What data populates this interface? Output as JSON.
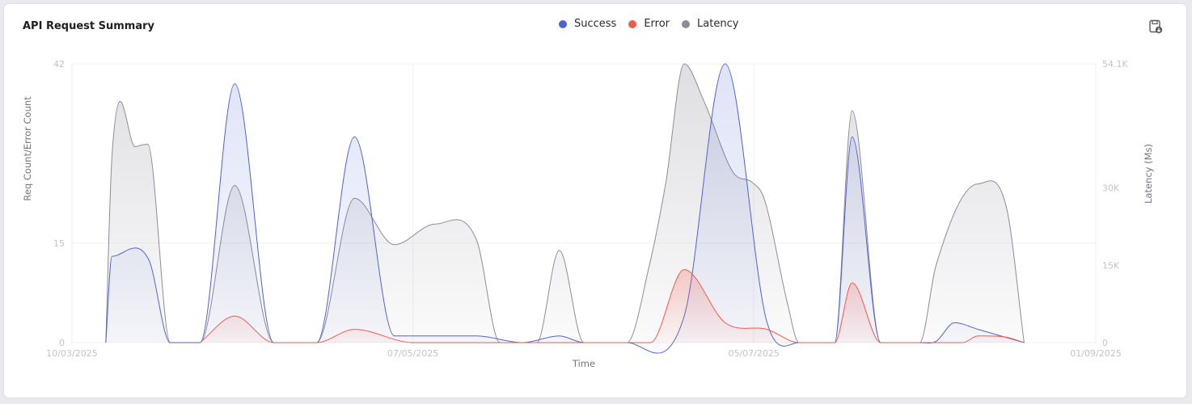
{
  "card": {
    "title": "API Request Summary",
    "export_icon": "save-download-icon"
  },
  "legend": [
    {
      "name": "Success",
      "color": "#4f63d2"
    },
    {
      "name": "Error",
      "color": "#f05a4c"
    },
    {
      "name": "Latency",
      "color": "#8c8c99"
    }
  ],
  "chart_data": {
    "type": "area",
    "title": "API Request Summary",
    "xlabel": "Time",
    "ylabel": "Req Count/Error Count",
    "y2label": "Latency (Ms)",
    "x_tick_labels": [
      "10/03/2025",
      "07/05/2025",
      "05/07/2025",
      "01/09/2025"
    ],
    "y_ticks": [
      0,
      15,
      42
    ],
    "y2_ticks": [
      "0",
      "15K",
      "30K",
      "54.1K"
    ],
    "ylim": [
      0,
      42
    ],
    "y2lim": [
      0,
      54100
    ],
    "x_range": [
      0,
      100
    ],
    "x_ticks_pos": [
      0,
      33.3,
      66.6,
      100
    ],
    "series": [
      {
        "name": "Latency",
        "axis": "right",
        "color": "#8c8c99",
        "points": [
          [
            3.3,
            0
          ],
          [
            3.9,
            36000
          ],
          [
            6.2,
            38000
          ],
          [
            7.4,
            38500
          ],
          [
            9.6,
            0
          ],
          [
            12.5,
            0
          ],
          [
            15.9,
            30500
          ],
          [
            19.7,
            0
          ],
          [
            23.9,
            0
          ],
          [
            27.6,
            28000
          ],
          [
            31.5,
            19000
          ],
          [
            35.5,
            23000
          ],
          [
            39.5,
            20000
          ],
          [
            41.8,
            0
          ],
          [
            45.4,
            0
          ],
          [
            47.6,
            17900
          ],
          [
            50,
            0
          ],
          [
            54.2,
            0
          ],
          [
            56.4,
            15000
          ],
          [
            58,
            31000
          ],
          [
            59.8,
            54100
          ],
          [
            61.7,
            47000
          ],
          [
            64.6,
            33000
          ],
          [
            66.5,
            31000
          ],
          [
            67.6,
            28000
          ],
          [
            69.9,
            7500
          ],
          [
            71,
            0
          ],
          [
            74.5,
            0
          ],
          [
            76.2,
            45000
          ],
          [
            79,
            0
          ],
          [
            82.8,
            0
          ],
          [
            84.4,
            15000
          ],
          [
            88.5,
            30800
          ],
          [
            91.3,
            26000
          ],
          [
            93,
            0
          ]
        ]
      },
      {
        "name": "Success",
        "axis": "left",
        "color": "#4f63d2",
        "points": [
          [
            3.3,
            0
          ],
          [
            3.9,
            13
          ],
          [
            7.5,
            12.5
          ],
          [
            9.6,
            0
          ],
          [
            12.5,
            0
          ],
          [
            15.9,
            39
          ],
          [
            19.7,
            0
          ],
          [
            23.9,
            0
          ],
          [
            27.6,
            31
          ],
          [
            31.5,
            1
          ],
          [
            39.5,
            1
          ],
          [
            44,
            0
          ],
          [
            47.6,
            1
          ],
          [
            50,
            0
          ],
          [
            54.2,
            0
          ],
          [
            59.8,
            4
          ],
          [
            63.8,
            42
          ],
          [
            67.9,
            3
          ],
          [
            71,
            0
          ],
          [
            74.5,
            0
          ],
          [
            76.2,
            31
          ],
          [
            79,
            0
          ],
          [
            82.8,
            0
          ],
          [
            84.4,
            0.2
          ],
          [
            86.2,
            3
          ],
          [
            88.5,
            2
          ],
          [
            93,
            0
          ]
        ]
      },
      {
        "name": "Error",
        "axis": "left",
        "color": "#f05a4c",
        "points": [
          [
            12.5,
            0
          ],
          [
            15.9,
            4
          ],
          [
            19.7,
            0
          ],
          [
            23.9,
            0
          ],
          [
            27.6,
            2
          ],
          [
            33.3,
            0
          ],
          [
            56.5,
            0
          ],
          [
            59.8,
            11
          ],
          [
            63.8,
            3
          ],
          [
            67.9,
            2
          ],
          [
            71,
            0
          ],
          [
            74.5,
            0
          ],
          [
            76.2,
            9
          ],
          [
            79,
            0
          ],
          [
            87,
            0
          ],
          [
            88.5,
            1
          ],
          [
            91.3,
            0.8
          ],
          [
            93,
            0
          ]
        ]
      }
    ]
  }
}
